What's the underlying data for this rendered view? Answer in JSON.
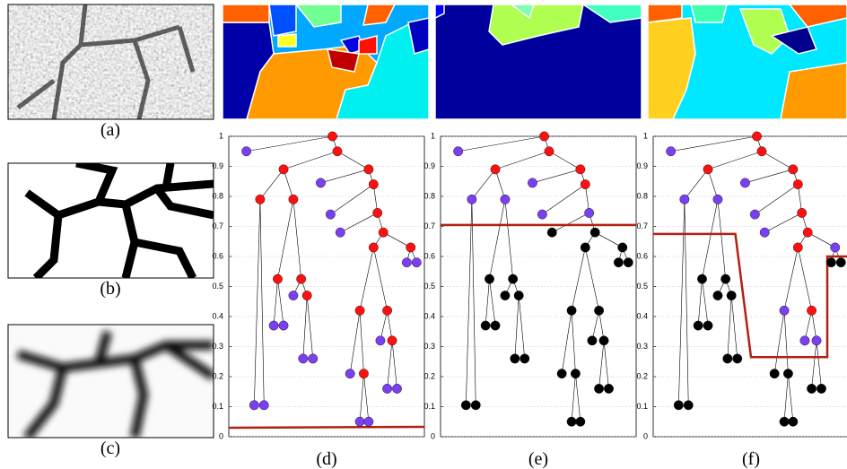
{
  "figure": {
    "image_labels": [
      "(a)",
      "(b)",
      "(c)"
    ],
    "ylim": [
      0,
      1
    ],
    "yticks": [
      0,
      0.1,
      0.2,
      0.3,
      0.4,
      0.5,
      0.6,
      0.7,
      0.8,
      0.9,
      1
    ],
    "grid": true,
    "tree": {
      "nodes": [
        {
          "x": 0.53,
          "y": 1.0,
          "parent": null
        },
        {
          "x": 0.555,
          "y": 0.95,
          "parent": 0
        },
        {
          "x": 0.09,
          "y": 0.95,
          "parent": 0
        },
        {
          "x": 0.28,
          "y": 0.89,
          "parent": 1
        },
        {
          "x": 0.715,
          "y": 0.89,
          "parent": 1
        },
        {
          "x": 0.47,
          "y": 0.845,
          "parent": 4
        },
        {
          "x": 0.16,
          "y": 0.79,
          "parent": 3
        },
        {
          "x": 0.33,
          "y": 0.79,
          "parent": 3
        },
        {
          "x": 0.74,
          "y": 0.84,
          "parent": 4
        },
        {
          "x": 0.52,
          "y": 0.74,
          "parent": 8
        },
        {
          "x": 0.76,
          "y": 0.745,
          "parent": 8
        },
        {
          "x": 0.57,
          "y": 0.68,
          "parent": 10
        },
        {
          "x": 0.79,
          "y": 0.68,
          "parent": 10
        },
        {
          "x": 0.93,
          "y": 0.63,
          "parent": 12
        },
        {
          "x": 0.74,
          "y": 0.63,
          "parent": 12
        },
        {
          "x": 0.91,
          "y": 0.58,
          "parent": 13
        },
        {
          "x": 0.96,
          "y": 0.58,
          "parent": 13
        },
        {
          "x": 0.25,
          "y": 0.525,
          "parent": 7
        },
        {
          "x": 0.37,
          "y": 0.525,
          "parent": 7
        },
        {
          "x": 0.33,
          "y": 0.47,
          "parent": 18
        },
        {
          "x": 0.4,
          "y": 0.47,
          "parent": 18
        },
        {
          "x": 0.23,
          "y": 0.37,
          "parent": 17
        },
        {
          "x": 0.28,
          "y": 0.37,
          "parent": 17
        },
        {
          "x": 0.38,
          "y": 0.26,
          "parent": 20
        },
        {
          "x": 0.43,
          "y": 0.26,
          "parent": 20
        },
        {
          "x": 0.67,
          "y": 0.42,
          "parent": 14
        },
        {
          "x": 0.81,
          "y": 0.42,
          "parent": 14
        },
        {
          "x": 0.62,
          "y": 0.21,
          "parent": 25
        },
        {
          "x": 0.69,
          "y": 0.21,
          "parent": 25
        },
        {
          "x": 0.775,
          "y": 0.32,
          "parent": 26
        },
        {
          "x": 0.835,
          "y": 0.32,
          "parent": 26
        },
        {
          "x": 0.81,
          "y": 0.16,
          "parent": 30
        },
        {
          "x": 0.86,
          "y": 0.16,
          "parent": 30
        },
        {
          "x": 0.67,
          "y": 0.05,
          "parent": 28
        },
        {
          "x": 0.715,
          "y": 0.05,
          "parent": 28
        },
        {
          "x": 0.13,
          "y": 0.105,
          "parent": 6
        },
        {
          "x": 0.18,
          "y": 0.105,
          "parent": 6
        }
      ]
    },
    "cut_color": "#b22010",
    "panels": [
      {
        "label": "(d)",
        "colors": [
          "#ff1010",
          "#ff1010",
          "#7a3ff0",
          "#ff1010",
          "#ff1010",
          "#7a3ff0",
          "#ff1010",
          "#ff1010",
          "#ff1010",
          "#7a3ff0",
          "#ff1010",
          "#7a3ff0",
          "#ff1010",
          "#ff1010",
          "#ff1010",
          "#7a3ff0",
          "#7a3ff0",
          "#ff1010",
          "#ff1010",
          "#7a3ff0",
          "#ff1010",
          "#7a3ff0",
          "#7a3ff0",
          "#7a3ff0",
          "#7a3ff0",
          "#ff1010",
          "#ff1010",
          "#7a3ff0",
          "#ff1010",
          "#7a3ff0",
          "#ff1010",
          "#7a3ff0",
          "#7a3ff0",
          "#7a3ff0",
          "#7a3ff0",
          "#7a3ff0",
          "#7a3ff0"
        ],
        "cut": {
          "x": [
            0,
            1
          ],
          "y": [
            0.03,
            0.033
          ]
        }
      },
      {
        "label": "(e)",
        "colors": [
          "#ff1010",
          "#ff1010",
          "#7a3ff0",
          "#ff1010",
          "#ff1010",
          "#7a3ff0",
          "#7a3ff0",
          "#7a3ff0",
          "#ff1010",
          "#7a3ff0",
          "#7a3ff0",
          "#000000",
          "#000000",
          "#000000",
          "#000000",
          "#000000",
          "#000000",
          "#000000",
          "#000000",
          "#000000",
          "#000000",
          "#000000",
          "#000000",
          "#000000",
          "#000000",
          "#000000",
          "#000000",
          "#000000",
          "#000000",
          "#000000",
          "#000000",
          "#000000",
          "#000000",
          "#000000",
          "#000000",
          "#000000",
          "#000000"
        ],
        "cut": {
          "x": [
            0,
            1
          ],
          "y": [
            0.705,
            0.705
          ]
        }
      },
      {
        "label": "(f)",
        "colors": [
          "#ff1010",
          "#ff1010",
          "#7a3ff0",
          "#ff1010",
          "#ff1010",
          "#7a3ff0",
          "#7a3ff0",
          "#7a3ff0",
          "#ff1010",
          "#7a3ff0",
          "#ff1010",
          "#7a3ff0",
          "#ff1010",
          "#7a3ff0",
          "#ff1010",
          "#000000",
          "#000000",
          "#000000",
          "#000000",
          "#000000",
          "#000000",
          "#000000",
          "#000000",
          "#000000",
          "#000000",
          "#7a3ff0",
          "#ff1010",
          "#000000",
          "#000000",
          "#7a3ff0",
          "#7a3ff0",
          "#000000",
          "#000000",
          "#000000",
          "#000000",
          "#000000",
          "#000000"
        ],
        "cut": {
          "x": [
            0,
            0.42,
            0.5,
            0.89,
            0.89,
            1
          ],
          "y": [
            0.675,
            0.675,
            0.265,
            0.265,
            0.6,
            0.6
          ]
        }
      }
    ]
  }
}
